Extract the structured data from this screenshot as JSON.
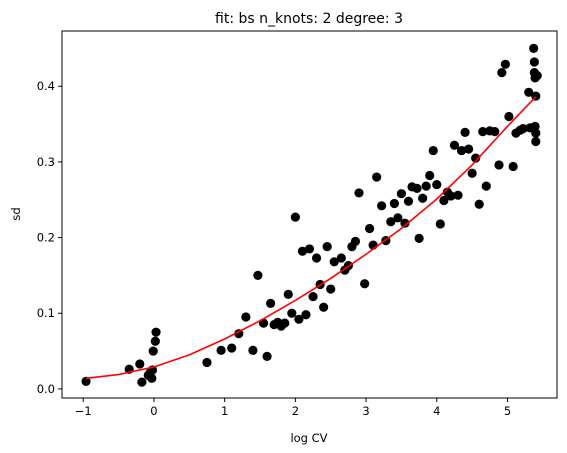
{
  "chart_data": {
    "type": "scatter",
    "title": "fit: bs n_knots: 2 degree: 3",
    "xlabel": "log CV",
    "ylabel": "sd",
    "xlim": [
      -1.3,
      5.7
    ],
    "ylim": [
      -0.012,
      0.473
    ],
    "xticks": [
      -1,
      0,
      1,
      2,
      3,
      4,
      5
    ],
    "yticks": [
      0.0,
      0.1,
      0.2,
      0.3,
      0.4
    ],
    "xtick_labels": [
      "−1",
      "0",
      "1",
      "2",
      "3",
      "4",
      "5"
    ],
    "ytick_labels": [
      "0.0",
      "0.1",
      "0.2",
      "0.3",
      "0.4"
    ],
    "grid": false,
    "colors": {
      "points": "#000000",
      "fit_line": "#ff0000"
    },
    "series": [
      {
        "kind": "scatter",
        "points": [
          [
            -0.96,
            0.01
          ],
          [
            -0.35,
            0.026
          ],
          [
            -0.2,
            0.033
          ],
          [
            -0.17,
            0.009
          ],
          [
            -0.08,
            0.018
          ],
          [
            -0.05,
            0.022
          ],
          [
            -0.03,
            0.014
          ],
          [
            -0.02,
            0.025
          ],
          [
            -0.01,
            0.05
          ],
          [
            0.02,
            0.063
          ],
          [
            0.03,
            0.075
          ],
          [
            0.75,
            0.035
          ],
          [
            0.95,
            0.051
          ],
          [
            1.1,
            0.054
          ],
          [
            1.2,
            0.073
          ],
          [
            1.3,
            0.095
          ],
          [
            1.4,
            0.051
          ],
          [
            1.47,
            0.15
          ],
          [
            1.55,
            0.087
          ],
          [
            1.6,
            0.043
          ],
          [
            1.65,
            0.113
          ],
          [
            1.7,
            0.085
          ],
          [
            1.75,
            0.088
          ],
          [
            1.8,
            0.083
          ],
          [
            1.85,
            0.087
          ],
          [
            1.9,
            0.125
          ],
          [
            1.95,
            0.1
          ],
          [
            2.0,
            0.227
          ],
          [
            2.05,
            0.092
          ],
          [
            2.1,
            0.182
          ],
          [
            2.15,
            0.098
          ],
          [
            2.2,
            0.185
          ],
          [
            2.25,
            0.122
          ],
          [
            2.3,
            0.173
          ],
          [
            2.35,
            0.138
          ],
          [
            2.4,
            0.108
          ],
          [
            2.45,
            0.188
          ],
          [
            2.5,
            0.132
          ],
          [
            2.55,
            0.168
          ],
          [
            2.65,
            0.173
          ],
          [
            2.7,
            0.157
          ],
          [
            2.75,
            0.163
          ],
          [
            2.8,
            0.188
          ],
          [
            2.85,
            0.195
          ],
          [
            2.9,
            0.259
          ],
          [
            2.98,
            0.139
          ],
          [
            3.05,
            0.212
          ],
          [
            3.1,
            0.19
          ],
          [
            3.15,
            0.28
          ],
          [
            3.22,
            0.242
          ],
          [
            3.28,
            0.196
          ],
          [
            3.35,
            0.221
          ],
          [
            3.4,
            0.245
          ],
          [
            3.45,
            0.226
          ],
          [
            3.5,
            0.258
          ],
          [
            3.55,
            0.219
          ],
          [
            3.6,
            0.248
          ],
          [
            3.65,
            0.267
          ],
          [
            3.72,
            0.265
          ],
          [
            3.75,
            0.199
          ],
          [
            3.8,
            0.252
          ],
          [
            3.85,
            0.268
          ],
          [
            3.9,
            0.282
          ],
          [
            3.95,
            0.315
          ],
          [
            4.0,
            0.27
          ],
          [
            4.05,
            0.218
          ],
          [
            4.1,
            0.249
          ],
          [
            4.15,
            0.26
          ],
          [
            4.2,
            0.255
          ],
          [
            4.25,
            0.322
          ],
          [
            4.3,
            0.256
          ],
          [
            4.35,
            0.315
          ],
          [
            4.4,
            0.339
          ],
          [
            4.45,
            0.317
          ],
          [
            4.5,
            0.285
          ],
          [
            4.55,
            0.305
          ],
          [
            4.6,
            0.244
          ],
          [
            4.65,
            0.34
          ],
          [
            4.7,
            0.268
          ],
          [
            4.75,
            0.341
          ],
          [
            4.82,
            0.34
          ],
          [
            4.88,
            0.296
          ],
          [
            4.92,
            0.418
          ],
          [
            4.97,
            0.429
          ],
          [
            5.02,
            0.36
          ],
          [
            5.08,
            0.294
          ],
          [
            5.12,
            0.338
          ],
          [
            5.18,
            0.342
          ],
          [
            5.22,
            0.344
          ],
          [
            5.3,
            0.392
          ],
          [
            5.32,
            0.345
          ],
          [
            5.37,
            0.45
          ],
          [
            5.38,
            0.432
          ],
          [
            5.38,
            0.418
          ],
          [
            5.39,
            0.411
          ],
          [
            5.39,
            0.347
          ],
          [
            5.4,
            0.338
          ],
          [
            5.4,
            0.327
          ],
          [
            5.4,
            0.387
          ],
          [
            5.42,
            0.414
          ]
        ]
      },
      {
        "kind": "line",
        "points": [
          [
            -0.96,
            0.014
          ],
          [
            -0.5,
            0.019
          ],
          [
            0.0,
            0.029
          ],
          [
            0.5,
            0.045
          ],
          [
            1.0,
            0.066
          ],
          [
            1.5,
            0.09
          ],
          [
            2.0,
            0.117
          ],
          [
            2.5,
            0.146
          ],
          [
            3.0,
            0.178
          ],
          [
            3.5,
            0.212
          ],
          [
            4.0,
            0.251
          ],
          [
            4.5,
            0.296
          ],
          [
            5.0,
            0.347
          ],
          [
            5.4,
            0.386
          ]
        ]
      }
    ]
  }
}
